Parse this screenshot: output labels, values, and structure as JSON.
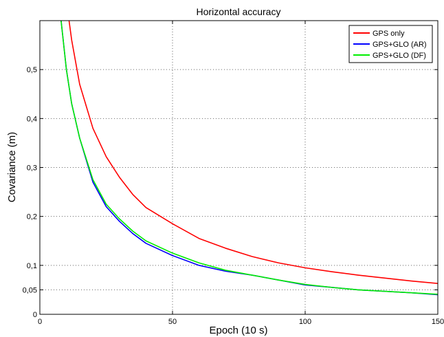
{
  "chart_data": {
    "type": "line",
    "title": "Horizontal accuracy",
    "xlabel": "Epoch (10 s)",
    "ylabel": "Covariance (m)",
    "xlim": [
      0,
      150
    ],
    "ylim": [
      0,
      0.6
    ],
    "xticks": [
      0,
      50,
      100,
      150
    ],
    "xtick_labels": [
      "0",
      "50",
      "100",
      "150"
    ],
    "yticks": [
      0,
      0.05,
      0.1,
      0.2,
      0.3,
      0.4,
      0.5
    ],
    "ytick_labels": [
      "0",
      "0,05",
      "0,1",
      "0,2",
      "0,3",
      "0,4",
      "0,5"
    ],
    "grid": true,
    "legend_position": "top-right",
    "x": [
      8,
      10,
      12,
      15,
      20,
      25,
      30,
      35,
      40,
      50,
      60,
      70,
      80,
      90,
      100,
      110,
      120,
      130,
      140,
      150
    ],
    "series": [
      {
        "name": "GPS only",
        "color": "#ff0000",
        "x": [
          11,
          12,
          15,
          20,
          25,
          30,
          35,
          40,
          50,
          60,
          70,
          80,
          90,
          100,
          110,
          120,
          130,
          140,
          150
        ],
        "values": [
          0.6,
          0.56,
          0.47,
          0.38,
          0.322,
          0.28,
          0.245,
          0.218,
          0.185,
          0.155,
          0.135,
          0.118,
          0.105,
          0.095,
          0.087,
          0.08,
          0.074,
          0.068,
          0.063
        ]
      },
      {
        "name": "GPS+GLO (AR)",
        "color": "#0000ff",
        "x": [
          8,
          10,
          12,
          15,
          20,
          25,
          30,
          35,
          40,
          50,
          60,
          70,
          80,
          90,
          100,
          110,
          120,
          130,
          140,
          150
        ],
        "values": [
          0.6,
          0.5,
          0.43,
          0.36,
          0.27,
          0.22,
          0.19,
          0.165,
          0.145,
          0.12,
          0.1,
          0.088,
          0.08,
          0.07,
          0.06,
          0.055,
          0.05,
          0.047,
          0.044,
          0.04
        ]
      },
      {
        "name": "GPS+GLO (DF)",
        "color": "#00ee00",
        "x": [
          8,
          10,
          12,
          15,
          20,
          25,
          30,
          35,
          40,
          50,
          60,
          70,
          80,
          90,
          100,
          110,
          120,
          130,
          140,
          150
        ],
        "values": [
          0.6,
          0.5,
          0.43,
          0.36,
          0.275,
          0.225,
          0.195,
          0.17,
          0.15,
          0.125,
          0.105,
          0.09,
          0.08,
          0.07,
          0.061,
          0.055,
          0.05,
          0.047,
          0.044,
          0.041
        ]
      }
    ]
  }
}
